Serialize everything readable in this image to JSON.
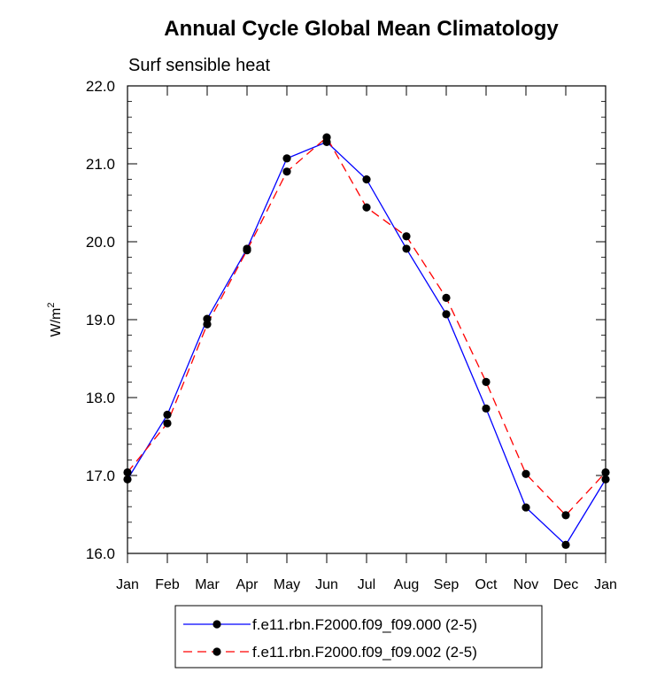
{
  "chart_data": {
    "type": "line",
    "title": "Annual Cycle Global Mean Climatology",
    "subtitle": "Surf sensible heat",
    "xlabel": "",
    "ylabel": "W/m",
    "ylabel_superscript": "2",
    "categories": [
      "Jan",
      "Feb",
      "Mar",
      "Apr",
      "May",
      "Jun",
      "Jul",
      "Aug",
      "Sep",
      "Oct",
      "Nov",
      "Dec",
      "Jan"
    ],
    "ylim": [
      16.0,
      22.0
    ],
    "yticks": [
      "16.0",
      "17.0",
      "18.0",
      "19.0",
      "20.0",
      "21.0",
      "22.0"
    ],
    "grid": false,
    "legend_position": "bottom",
    "series": [
      {
        "name": "f.e11.rbn.F2000.f09_f09.000 (2-5)",
        "color": "#0000ff",
        "dash": "solid",
        "marker": "filled-circle",
        "values": [
          16.95,
          17.78,
          19.01,
          19.91,
          21.07,
          21.28,
          20.8,
          19.91,
          19.07,
          17.86,
          16.59,
          16.11,
          16.95
        ]
      },
      {
        "name": "f.e11.rbn.F2000.f09_f09.002 (2-5)",
        "color": "#ff0000",
        "dash": "dashed",
        "marker": "filled-circle",
        "values": [
          17.04,
          17.67,
          18.94,
          19.89,
          20.9,
          21.34,
          20.44,
          20.07,
          19.28,
          18.2,
          17.02,
          16.49,
          17.04
        ]
      }
    ]
  }
}
